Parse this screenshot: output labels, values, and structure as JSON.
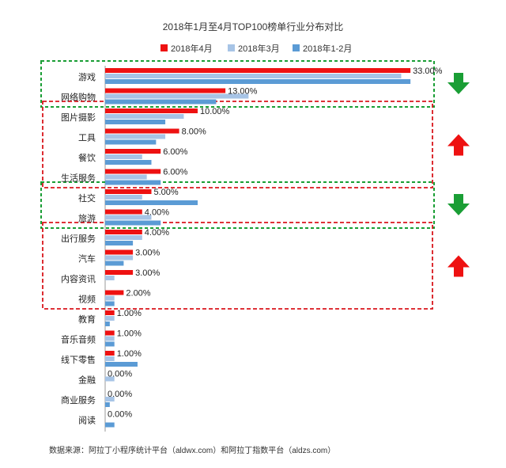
{
  "chart_data": {
    "type": "bar",
    "orientation": "horizontal",
    "title": "2018年1月至4月TOP100榜单行业分布对比",
    "categories": [
      "游戏",
      "网络购物",
      "图片摄影",
      "工具",
      "餐饮",
      "生活服务",
      "社交",
      "旅游",
      "出行服务",
      "汽车",
      "内容资讯",
      "视频",
      "教育",
      "音乐音频",
      "线下零售",
      "金融",
      "商业服务",
      "阅读"
    ],
    "series": [
      {
        "name": "2018年4月",
        "color": "#ee1111",
        "values": [
          33,
          13,
          10,
          8,
          6,
          6,
          5,
          4,
          4,
          3,
          3,
          2,
          1,
          1,
          1,
          0,
          0,
          0
        ]
      },
      {
        "name": "2018年3月",
        "color": "#a7c4e6",
        "values": [
          32,
          15.5,
          8.5,
          6.5,
          4,
          4.5,
          4,
          5,
          4,
          3,
          1,
          1,
          1,
          1,
          1,
          1,
          1,
          0
        ]
      },
      {
        "name": "2018年1-2月",
        "color": "#5b9bd5",
        "values": [
          33,
          12,
          6.5,
          5.5,
          5,
          6,
          10,
          6,
          3,
          2,
          0,
          1,
          0.5,
          1,
          3.5,
          0,
          0.5,
          1
        ]
      }
    ],
    "data_labels": [
      "33.00%",
      "13.00%",
      "10.00%",
      "8.00%",
      "6.00%",
      "6.00%",
      "5.00%",
      "4.00%",
      "4.00%",
      "3.00%",
      "3.00%",
      "2.00%",
      "1.00%",
      "1.00%",
      "1.00%",
      "0.00%",
      "0.00%",
      "0.00%"
    ],
    "xlim": [
      0,
      33.5
    ],
    "legend_position": "top",
    "grid": false,
    "groups": [
      {
        "categories": [
          "游戏",
          "网络购物"
        ],
        "trend": "down",
        "border_color": "#1a9e35"
      },
      {
        "categories": [
          "图片摄影",
          "工具",
          "餐饮",
          "生活服务"
        ],
        "trend": "up",
        "border_color": "#d9161c"
      },
      {
        "categories": [
          "社交",
          "旅游"
        ],
        "trend": "down",
        "border_color": "#1a9e35"
      },
      {
        "categories": [
          "出行服务",
          "汽车",
          "内容资讯",
          "视频"
        ],
        "trend": "up",
        "border_color": "#d9161c"
      }
    ]
  },
  "source_note": "数据来源：阿拉丁小程序统计平台（aldwx.com）和阿拉丁指数平台（aldzs.com）"
}
